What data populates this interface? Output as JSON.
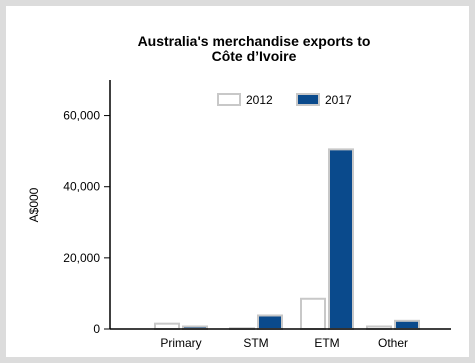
{
  "chart_data": {
    "type": "bar",
    "title": [
      "Australia's merchandise exports to",
      "Côte d’Ivoire"
    ],
    "xlabel": "",
    "ylabel": "A$000",
    "categories": [
      "Primary",
      "STM",
      "ETM",
      "Other"
    ],
    "series": [
      {
        "name": "2012",
        "values": [
          1500,
          200,
          8500,
          700
        ],
        "fill": "#ffffff",
        "stroke": "#c8c8c8"
      },
      {
        "name": "2017",
        "values": [
          700,
          3800,
          50500,
          2300
        ],
        "fill": "#0a4a8c",
        "stroke": "#c8c8c8"
      }
    ],
    "ylim": [
      0,
      70000
    ],
    "yticks": [
      0,
      20000,
      40000,
      60000
    ],
    "ytick_labels": [
      "0",
      "20,000",
      "40,000",
      "60,000"
    ],
    "legend_position": "top-right",
    "grid": false
  }
}
